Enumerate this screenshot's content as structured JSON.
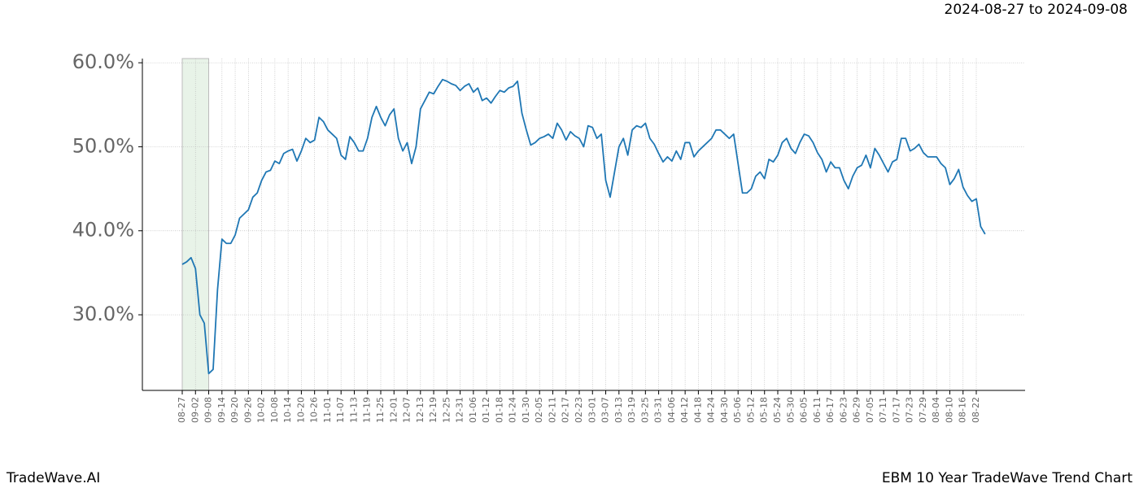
{
  "chart_data": {
    "type": "line",
    "date_range": "2024-08-27 to 2024-09-08",
    "footer_left": "TradeWave.AI",
    "footer_right": "EBM 10 Year TradeWave Trend Chart",
    "categories": [
      "08-27",
      null,
      null,
      "09-02",
      null,
      null,
      "09-08",
      null,
      null,
      "09-14",
      null,
      null,
      "09-20",
      null,
      null,
      "09-26",
      null,
      null,
      "10-02",
      null,
      null,
      "10-08",
      null,
      null,
      "10-14",
      null,
      null,
      "10-20",
      null,
      null,
      "10-26",
      null,
      null,
      "11-01",
      null,
      null,
      "11-07",
      null,
      null,
      "11-13",
      null,
      null,
      "11-19",
      null,
      null,
      "11-25",
      null,
      null,
      "12-01",
      null,
      null,
      "12-07",
      null,
      null,
      "12-13",
      null,
      null,
      "12-19",
      null,
      null,
      "12-25",
      null,
      null,
      "12-31",
      null,
      null,
      "01-06",
      null,
      null,
      "01-12",
      null,
      null,
      "01-18",
      null,
      null,
      "01-24",
      null,
      null,
      "01-30",
      null,
      null,
      "02-05",
      null,
      null,
      "02-11",
      null,
      null,
      "02-17",
      null,
      null,
      "02-23",
      null,
      null,
      "03-01",
      null,
      null,
      "03-07",
      null,
      null,
      "03-13",
      null,
      null,
      "03-19",
      null,
      null,
      "03-25",
      null,
      null,
      "03-31",
      null,
      null,
      "04-06",
      null,
      null,
      "04-12",
      null,
      null,
      "04-18",
      null,
      null,
      "04-24",
      null,
      null,
      "04-30",
      null,
      null,
      "05-06",
      null,
      null,
      "05-12",
      null,
      null,
      "05-18",
      null,
      null,
      "05-24",
      null,
      null,
      "05-30",
      null,
      null,
      "06-05",
      null,
      null,
      "06-11",
      null,
      null,
      "06-17",
      null,
      null,
      "06-23",
      null,
      null,
      "06-29",
      null,
      null,
      "07-05",
      null,
      null,
      "07-11",
      null,
      null,
      "07-17",
      null,
      null,
      "07-23",
      null,
      null,
      "07-29",
      null,
      null,
      "08-04",
      null,
      null,
      "08-10",
      null,
      null,
      "08-16",
      null,
      null,
      "08-22",
      null,
      null
    ],
    "series": [
      {
        "color": "#1f77b4",
        "values": [
          36,
          36.3,
          36.8,
          35.5,
          30,
          29,
          23,
          23.5,
          33,
          39,
          38.5,
          38.5,
          39.5,
          41.5,
          42,
          42.5,
          44,
          44.5,
          46,
          47,
          47.2,
          48.3,
          48,
          49.2,
          49.5,
          49.7,
          48.3,
          49.5,
          51,
          50.5,
          50.8,
          53.5,
          53,
          52,
          51.5,
          51,
          49,
          48.5,
          51.2,
          50.5,
          49.5,
          49.5,
          51,
          53.5,
          54.8,
          53.5,
          52.5,
          53.8,
          54.5,
          51,
          49.5,
          50.5,
          48,
          50,
          54.5,
          55.5,
          56.5,
          56.3,
          57.2,
          58,
          57.8,
          57.5,
          57.3,
          56.7,
          57.2,
          57.5,
          56.5,
          57,
          55.5,
          55.8,
          55.2,
          56,
          56.7,
          56.5,
          57,
          57.2,
          57.8,
          54,
          52,
          50.2,
          50.5,
          51,
          51.2,
          51.5,
          51,
          52.8,
          52,
          50.8,
          51.8,
          51.3,
          51,
          50,
          52.5,
          52.3,
          51,
          51.5,
          46,
          44,
          47,
          50,
          51,
          49,
          52,
          52.5,
          52.3,
          52.8,
          51,
          50.3,
          49.2,
          48.2,
          48.8,
          48.3,
          49.5,
          48.5,
          50.5,
          50.5,
          48.8,
          49.5,
          50,
          50.5,
          51,
          52,
          52,
          51.5,
          51,
          51.5,
          48,
          44.5,
          44.5,
          45,
          46.5,
          47,
          46.2,
          48.5,
          48.2,
          49,
          50.5,
          51,
          49.8,
          49.2,
          50.5,
          51.5,
          51.3,
          50.5,
          49.3,
          48.5,
          47,
          48.2,
          47.5,
          47.5,
          46,
          45,
          46.5,
          47.5,
          47.8,
          49,
          47.5,
          49.8,
          49,
          48,
          47,
          48.2,
          48.5,
          51,
          51,
          49.5,
          49.8,
          50.3,
          49.3,
          48.8,
          48.8,
          48.8,
          48,
          47.5,
          45.5,
          46.2,
          47.3,
          45.2,
          44.2,
          43.5,
          43.8,
          40.5,
          39.6
        ]
      }
    ],
    "highlight": {
      "from": "08-27",
      "to": "09-08",
      "color": "#e8f3e8"
    },
    "ylim": [
      21,
      60.5
    ],
    "yticks": [
      {
        "value": 30,
        "label": "30.0%"
      },
      {
        "value": 40,
        "label": "40.0%"
      },
      {
        "value": 50,
        "label": "50.0%"
      },
      {
        "value": 60,
        "label": "60.0%"
      }
    ],
    "grid": true
  }
}
